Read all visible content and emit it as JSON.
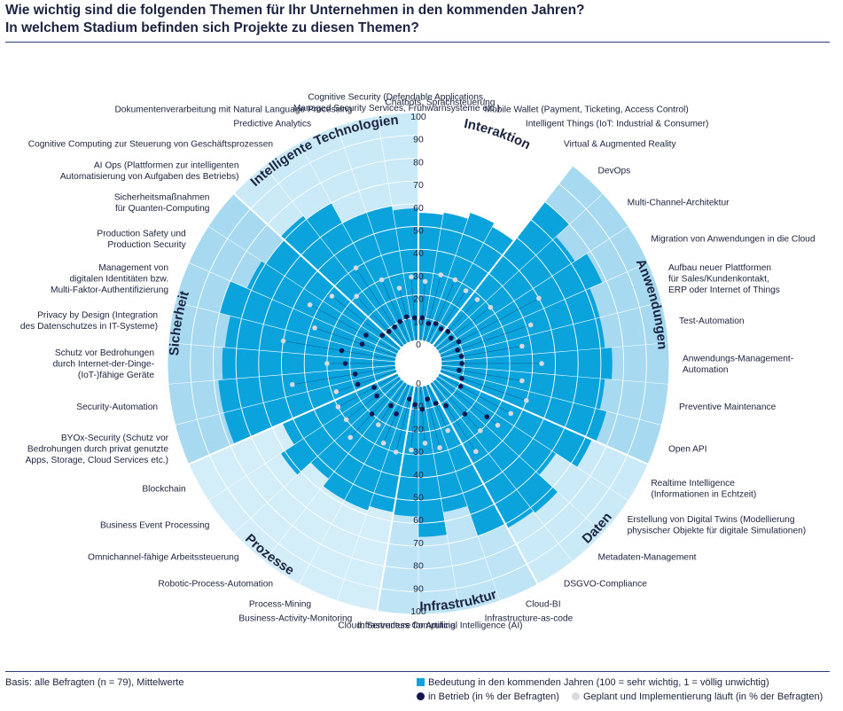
{
  "title_line1": "Wie wichtig sind die folgenden Themen für Ihr Unternehmen in den kommenden Jahren?",
  "title_line2": "In welchem Stadium befinden sich Projekte zu diesen Themen?",
  "footnote": "Basis: alle Befragten (n = 79), Mittelwerte",
  "legend": {
    "bar": "Bedeutung in den kommenden Jahren (100 = sehr wichtig, 1 = völlig unwichtig)",
    "dark_dot": "in Betrieb (in % der Befragten)",
    "light_dot": "Geplant und Implementierung läuft (in % der Befragten)"
  },
  "colors": {
    "bar": "#0aa3dc",
    "dark_dot": "#14164f",
    "light_dot": "#d8dadf",
    "cat_bg": [
      "#ffffff",
      "#a7d9f0",
      "#cbeaf7",
      "#bfe4f5",
      "#d3eef9",
      "#a7d9f0",
      "#cbeaf7"
    ]
  },
  "chart_data": {
    "type": "radial-bar",
    "rings": [
      0,
      10,
      20,
      30,
      40,
      50,
      60,
      70,
      80,
      90,
      100
    ],
    "categories": [
      {
        "name": "Interaktion",
        "topics": [
          "Chatbots, Sprachsteuerung",
          "Mobile Wallet (Payment, Ticketing, Access Control)",
          "Intelligent Things (IoT: Industrial & Consumer)",
          "Virtual & Augmented Reality"
        ]
      },
      {
        "name": "Anwendungen",
        "topics": [
          "DevOps",
          "Multi-Channel-Architektur",
          "Migration von Anwendungen in die Cloud",
          "Aufbau neuer Plattformen für Sales/Kundenkontakt, ERP oder Internet of Things",
          "Test-Automation",
          "Anwendungs-Management-Automation",
          "Preventive Maintenance",
          "Open API"
        ]
      },
      {
        "name": "Daten",
        "topics": [
          "Realtime Intelligence (Informationen in Echtzeit)",
          "Erstellung von Digital Twins (Modellierung physischer Objekte für digitale Simulationen)",
          "Metadaten-Management",
          "DSGVO-Compliance"
        ]
      },
      {
        "name": "Infrastruktur",
        "topics": [
          "Cloud-BI",
          "Infrastructure-as-code",
          "Infrastructure for Artificial Intelligence (AI)",
          "Cloud: Serverless Computing"
        ]
      },
      {
        "name": "Prozesse",
        "topics": [
          "Business-Activity-Monitoring",
          "Process-Mining",
          "Robotic-Process-Automation",
          "Omnichannel-fähige Arbeitssteuerung",
          "Business Event Processing",
          "Blockchain"
        ]
      },
      {
        "name": "Sicherheit",
        "topics": [
          "BYOx-Security (Schutz vor Bedrohungen durch privat genutzte Apps, Storage, Cloud Services etc.)",
          "Security-Automation",
          "Schutz vor Bedrohungen durch Internet-der-Dinge-(IoT-)fähige Geräte",
          "Privacy by Design (Integration des Datenschutzes in IT-Systeme)",
          "Management von digitalen Identitäten bzw. Multi-Faktor-Authentifizierung",
          "Production Safety und Production Security",
          "Sicherheitsmaßnahmen für Quanten-Computing"
        ]
      },
      {
        "name": "Intelligente Technologien",
        "topics": [
          "AI Ops (Plattformen zur intelligenten Automatisierung von Aufgaben des Betriebs)",
          "Cognitive Computing zur Steuerung von Geschäftsprozessen",
          "Predictive Analytics",
          "Dokumentenverarbeitung mit Natural Language Processing",
          "Cognitive Security (Defendable Applications, Managed Security Services, Frühwarnsysteme etc.)"
        ]
      }
    ],
    "topics": [
      {
        "label": "Chatbots, Sprachsteuerung",
        "importance": 56,
        "in_operation": 10,
        "planned": 26
      },
      {
        "label": "Mobile Wallet (Payment, Ticketing, Access Control)",
        "importance": 57,
        "in_operation": 8,
        "planned": 30
      },
      {
        "label": "Intelligent Things (IoT: Industrial & Consumer)",
        "importance": 60,
        "in_operation": 9,
        "planned": 30
      },
      {
        "label": "Virtual & Augmented Reality",
        "importance": 58,
        "in_operation": 8,
        "planned": 28
      },
      {
        "label": "DevOps",
        "importance": 80,
        "in_operation": 9,
        "planned": 28
      },
      {
        "label": "Multi-Channel-Architektur",
        "importance": 72,
        "in_operation": 8,
        "planned": 30
      },
      {
        "label": "Migration von Anwendungen in die Cloud",
        "importance": 78,
        "in_operation": 10,
        "planned": 50
      },
      {
        "label": "Aufbau neuer Plattformen für Sales/Kundenkontakt, ERP oder Internet of Things",
        "importance": 72,
        "in_operation": 8,
        "planned": 42
      },
      {
        "label": "Test-Automation",
        "importance": 72,
        "in_operation": 9,
        "planned": 36
      },
      {
        "label": "Anwendungs-Management-Automation",
        "importance": 75,
        "in_operation": 9,
        "planned": 44
      },
      {
        "label": "Preventive Maintenance",
        "importance": 72,
        "in_operation": 8,
        "planned": 36
      },
      {
        "label": "Open API",
        "importance": 75,
        "in_operation": 10,
        "planned": 40
      },
      {
        "label": "Realtime Intelligence (Informationen in Echtzeit)",
        "importance": 73,
        "in_operation": 11,
        "planned": 36
      },
      {
        "label": "Erstellung von Digital Twins (Modellierung physischer Objekte für digitale Simulationen)",
        "importance": 62,
        "in_operation": 28,
        "planned": 34
      },
      {
        "label": "Metadaten-Management",
        "importance": 73,
        "in_operation": 20,
        "planned": 30
      },
      {
        "label": "DSGVO-Compliance",
        "importance": 72,
        "in_operation": 12,
        "planned": 36
      },
      {
        "label": "Cloud-BI",
        "importance": 70,
        "in_operation": 9,
        "planned": 22
      },
      {
        "label": "Infrastructure-as-code",
        "importance": 56,
        "in_operation": 6,
        "planned": 28
      },
      {
        "label": "Infrastructure for Artificial Intelligence (AI)",
        "importance": 66,
        "in_operation": 10,
        "planned": 25
      },
      {
        "label": "Cloud: Serverless Computing",
        "importance": 57,
        "in_operation": 8,
        "planned": 28
      },
      {
        "label": "Business-Activity-Monitoring",
        "importance": 56,
        "in_operation": 6,
        "planned": 30
      },
      {
        "label": "Process-Mining",
        "importance": 58,
        "in_operation": 14,
        "planned": 28
      },
      {
        "label": "Robotic-Process-Automation",
        "importance": 58,
        "in_operation": 12,
        "planned": 22
      },
      {
        "label": "Omnichannel-fähige Arbeitssteuerung",
        "importance": 54,
        "in_operation": 20,
        "planned": 34
      },
      {
        "label": "Business Event Processing",
        "importance": 62,
        "in_operation": 13,
        "planned": 30
      },
      {
        "label": "Blockchain",
        "importance": 55,
        "in_operation": 12,
        "planned": 30
      },
      {
        "label": "BYOx-Security (Schutz vor Bedrohungen durch privat genutzte Apps, Storage, Cloud Services etc.)",
        "importance": 78,
        "in_operation": 18,
        "planned": 28
      },
      {
        "label": "Security-Automation",
        "importance": 78,
        "in_operation": 18,
        "planned": 46
      },
      {
        "label": "Schutz vor Bedrohungen durch Internet-der-Dinge-(IoT-)fähige Geräte",
        "importance": 76,
        "in_operation": 22,
        "planned": 30
      },
      {
        "label": "Privacy by Design (Integration des Datenschutzes in IT-Systeme)",
        "importance": 75,
        "in_operation": 24,
        "planned": 50
      },
      {
        "label": "Management von digitalen Identitäten bzw. Multi-Faktor-Authentifizierung",
        "importance": 80,
        "in_operation": 16,
        "planned": 38
      },
      {
        "label": "Production Safety und Production Security",
        "importance": 72,
        "in_operation": 16,
        "planned": 44
      },
      {
        "label": "Sicherheitsmaßnahmen für Quanten-Computing",
        "importance": 70,
        "in_operation": 10,
        "planned": 38
      },
      {
        "label": "AI Ops (Plattformen zur intelligenten Automatisierung von Aufgaben des Betriebs)",
        "importance": 72,
        "in_operation": 9,
        "planned": 30
      },
      {
        "label": "Cognitive Computing zur Steuerung von Geschäftsprozessen",
        "importance": 70,
        "in_operation": 9,
        "planned": 40
      },
      {
        "label": "Predictive Analytics",
        "importance": 60,
        "in_operation": 10,
        "planned": 30
      },
      {
        "label": "Dokumentenverarbeitung mit Natural Language Processing",
        "importance": 60,
        "in_operation": 11,
        "planned": 24
      },
      {
        "label": "Cognitive Security (Defendable Applications, Managed Security Services, Frühwarnsysteme etc.)",
        "importance": 58,
        "in_operation": 10,
        "planned": 28
      }
    ]
  }
}
